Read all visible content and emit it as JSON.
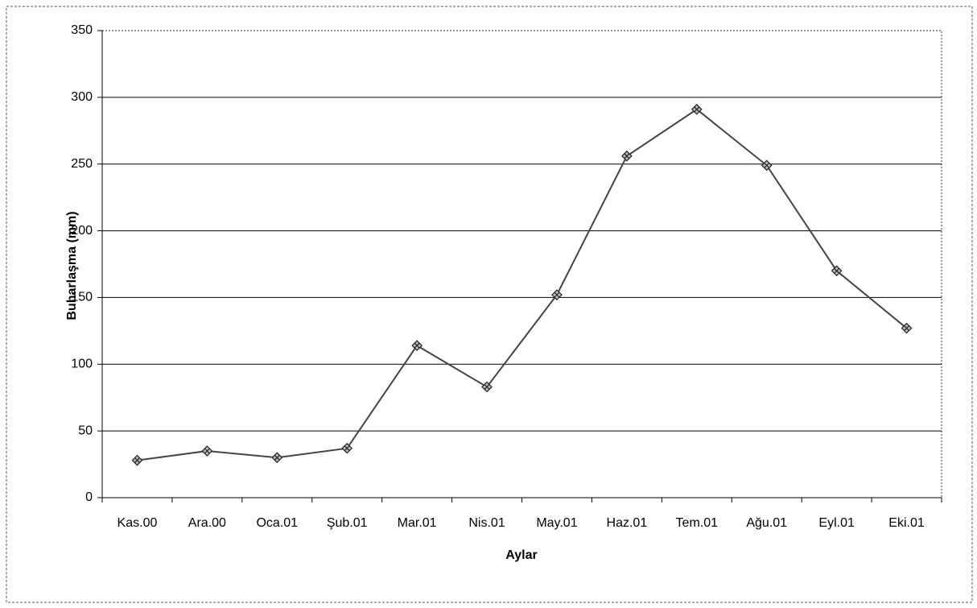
{
  "chart_data": {
    "type": "line",
    "categories": [
      "Kas.00",
      "Ara.00",
      "Oca.01",
      "Şub.01",
      "Mar.01",
      "Nis.01",
      "May.01",
      "Haz.01",
      "Tem.01",
      "Ağu.01",
      "Eyl.01",
      "Eki.01"
    ],
    "values": [
      28,
      35,
      30,
      37,
      114,
      83,
      152,
      256,
      291,
      249,
      170,
      127
    ],
    "color": "#444444",
    "xlabel": "Aylar",
    "ylabel": "Buharlaşma (mm)",
    "ylim": [
      0,
      350
    ],
    "yticks": [
      0,
      50,
      100,
      150,
      200,
      250,
      300,
      350
    ],
    "grid": true
  }
}
